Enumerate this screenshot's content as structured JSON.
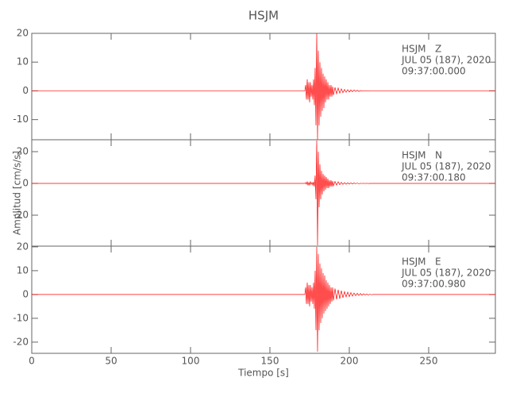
{
  "chart_data": [
    {
      "type": "line",
      "title": "HSJM",
      "y_label": "Amplitud [cm/s/s]",
      "color": "#ff0000",
      "annotation": [
        "HSJM   Z",
        "JUL 05 (187), 2020",
        "09:37:00.000"
      ],
      "xlim": [
        0,
        292
      ],
      "ylim": [
        -17,
        20
      ],
      "yticks": [
        20,
        10,
        0,
        -10
      ],
      "x": [
        0,
        172,
        172.5,
        173,
        173.5,
        174,
        174.5,
        175,
        175.5,
        176,
        176.5,
        177,
        177.5,
        178,
        178.5,
        179,
        179.5,
        180,
        180.5,
        181,
        181.5,
        182,
        182.5,
        183,
        183.5,
        184,
        184.5,
        185,
        185.5,
        186,
        186.5,
        187,
        187.5,
        188,
        188.5,
        189,
        189.5,
        190,
        191,
        192,
        193,
        194,
        195,
        196,
        197,
        198,
        199,
        200,
        201,
        202,
        203,
        204,
        205,
        206,
        207,
        208,
        209,
        210,
        211,
        212,
        213,
        214,
        215,
        292
      ],
      "values": [
        0,
        0,
        2,
        -3,
        4,
        -3,
        3,
        -4,
        3,
        -2,
        2,
        -3,
        4,
        -5,
        8,
        -12,
        20,
        -17,
        14,
        -12,
        10,
        -9,
        8,
        -7,
        6,
        -6,
        5,
        -4,
        4,
        -3,
        3,
        -3,
        2,
        -2,
        2,
        -2,
        1.5,
        -1.5,
        1.2,
        -1,
        1,
        -0.8,
        0.7,
        -0.6,
        0.5,
        -0.5,
        0.4,
        -0.4,
        0.3,
        -0.3,
        0.3,
        -0.2,
        0.2,
        -0.2,
        0.1,
        -0.1,
        0.1,
        -0.1,
        0.1,
        -0.1,
        0,
        0,
        0,
        0
      ]
    },
    {
      "type": "line",
      "color": "#ff0000",
      "annotation": [
        "HSJM   N",
        "JUL 05 (187), 2020",
        "09:37:00.180"
      ],
      "xlim": [
        0,
        292
      ],
      "ylim": [
        -39.5,
        27.5
      ],
      "yticks": [
        20,
        0,
        -20
      ],
      "x": [
        0,
        172,
        172.5,
        173,
        173.5,
        174,
        174.5,
        175,
        175.5,
        176,
        176.5,
        177,
        177.5,
        178,
        178.5,
        179,
        179.5,
        180,
        180.5,
        181,
        181.5,
        182,
        182.5,
        183,
        183.5,
        184,
        184.5,
        185,
        185.5,
        186,
        186.5,
        187,
        187.5,
        188,
        188.5,
        189,
        189.5,
        190,
        191,
        192,
        193,
        194,
        195,
        196,
        197,
        198,
        199,
        200,
        201,
        202,
        203,
        204,
        205,
        206,
        207,
        208,
        209,
        210,
        211,
        212,
        213,
        214,
        215,
        292
      ],
      "values": [
        0,
        0,
        0.5,
        -0.5,
        1,
        -1,
        0.5,
        -1,
        1,
        -0.5,
        0.5,
        -1,
        1,
        -2,
        5,
        -10,
        27,
        -39,
        20,
        -15,
        12,
        -10,
        8,
        -7,
        6,
        -5,
        5,
        -4,
        4,
        -3,
        3,
        -3,
        2,
        -2,
        2,
        -2,
        1.5,
        -1.5,
        1.2,
        -1,
        1,
        -0.8,
        0.7,
        -0.6,
        0.5,
        -0.5,
        0.4,
        -0.4,
        0.3,
        -0.3,
        0.3,
        -0.2,
        0.2,
        -0.2,
        0.1,
        -0.1,
        0.1,
        -0.1,
        0.1,
        -0.1,
        0,
        0,
        0,
        0
      ]
    },
    {
      "type": "line",
      "color": "#ff0000",
      "x_label": "Tiempo [s]",
      "annotation": [
        "HSJM   E",
        "JUL 05 (187), 2020",
        "09:37:00.980"
      ],
      "xlim": [
        0,
        292
      ],
      "ylim": [
        -24.7,
        20.3
      ],
      "yticks": [
        20,
        10,
        0,
        -10,
        -20
      ],
      "xticks": [
        0,
        50,
        100,
        150,
        200,
        250
      ],
      "x": [
        0,
        172,
        172.5,
        173,
        173.5,
        174,
        174.5,
        175,
        175.5,
        176,
        176.5,
        177,
        177.5,
        178,
        178.5,
        179,
        179.5,
        180,
        180.5,
        181,
        181.5,
        182,
        182.5,
        183,
        183.5,
        184,
        184.5,
        185,
        185.5,
        186,
        186.5,
        187,
        187.5,
        188,
        188.5,
        189,
        189.5,
        190,
        191,
        192,
        193,
        194,
        195,
        196,
        197,
        198,
        199,
        200,
        201,
        202,
        203,
        204,
        205,
        206,
        207,
        208,
        209,
        210,
        211,
        212,
        213,
        214,
        215,
        292
      ],
      "values": [
        0,
        0,
        3,
        -4,
        5,
        -4,
        4,
        -5,
        4,
        -3,
        3,
        -4,
        5,
        -6,
        10,
        -15,
        20,
        -24,
        17,
        -15,
        13,
        -12,
        11,
        -10,
        9,
        -8,
        8,
        -7,
        6,
        -6,
        5,
        -5,
        4,
        -4,
        3,
        -3,
        3,
        -2.5,
        2.5,
        -2,
        2,
        -1.8,
        1.6,
        -1.4,
        1.2,
        -1,
        1,
        -0.9,
        0.8,
        -0.7,
        0.6,
        -0.5,
        0.5,
        -0.4,
        0.4,
        -0.3,
        0.3,
        -0.2,
        0.2,
        -0.2,
        0.1,
        -0.1,
        0,
        0
      ]
    }
  ]
}
